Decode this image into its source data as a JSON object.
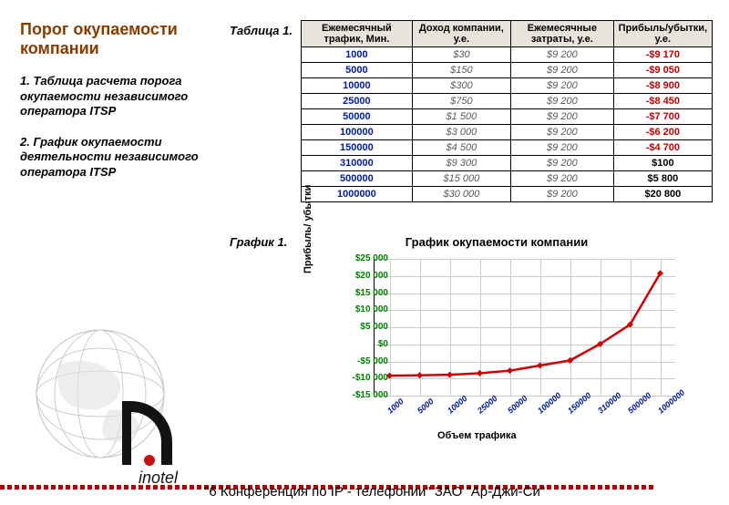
{
  "title": "Порог окупаемости компании",
  "subheads": [
    "1. Таблица расчета порога окупаемости независимого оператора ITSP",
    "2. График окупаемости деятельности независимого оператора ITSP"
  ],
  "table_caption": "Таблица 1.",
  "chart_caption": "График 1.",
  "table": {
    "columns": [
      "Ежемесячный трафик, Мин.",
      "Доход компании, у.е.",
      "Ежемесячные затраты, у.е.",
      "Прибыль/убытки, у.е."
    ],
    "col_widths_pct": [
      27,
      24,
      25,
      24
    ],
    "rows": [
      [
        "1000",
        "$30",
        "$9 200",
        "-$9 170"
      ],
      [
        "5000",
        "$150",
        "$9 200",
        "-$9 050"
      ],
      [
        "10000",
        "$300",
        "$9 200",
        "-$8 900"
      ],
      [
        "25000",
        "$750",
        "$9 200",
        "-$8 450"
      ],
      [
        "50000",
        "$1 500",
        "$9 200",
        "-$7 700"
      ],
      [
        "100000",
        "$3 000",
        "$9 200",
        "-$6 200"
      ],
      [
        "150000",
        "$4 500",
        "$9 200",
        "-$4 700"
      ],
      [
        "310000",
        "$9 300",
        "$9 200",
        "$100"
      ],
      [
        "500000",
        "$15 000",
        "$9 200",
        "$5 800"
      ],
      [
        "1000000",
        "$30 000",
        "$9 200",
        "$20 800"
      ]
    ],
    "profit_negative": [
      true,
      true,
      true,
      true,
      true,
      true,
      true,
      false,
      false,
      false
    ]
  },
  "chart": {
    "title": "График окупаемости  компании",
    "ylabel": "Прибыль/ убытки",
    "xlabel": "Объем трафика",
    "type": "line",
    "line_color": "#d10000",
    "line_width": 2.5,
    "grid_color": "#cccccc",
    "background_color": "#ffffff",
    "ylim": [
      -15000,
      25000
    ],
    "ytick_step": 5000,
    "yticks": [
      "-$15 000",
      "-$10 000",
      "-$5 000",
      "$0",
      "$5 000",
      "$10 000",
      "$15 000",
      "$20 000",
      "$25 000"
    ],
    "x_categories": [
      "1000",
      "5000",
      "10000",
      "25000",
      "50000",
      "100000",
      "150000",
      "310000",
      "500000",
      "1000000"
    ],
    "y_values": [
      -9170,
      -9050,
      -8900,
      -8450,
      -7700,
      -6200,
      -4700,
      100,
      5800,
      20800
    ],
    "marker": "diamond",
    "marker_color": "#d10000",
    "marker_size": 5
  },
  "footer": "\"6 Конференция по IP - телефонии\"       ЗАО \"Ар-Джи-Си\"",
  "logo_text": "inotel"
}
